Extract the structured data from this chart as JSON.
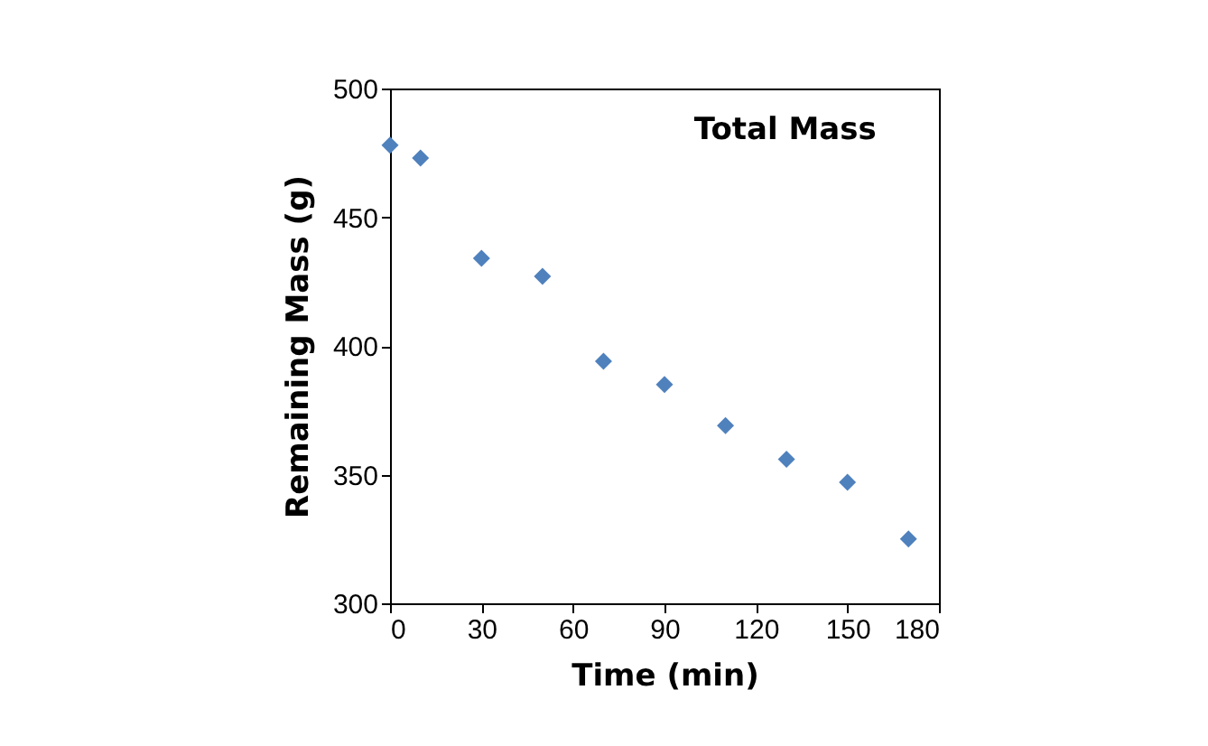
{
  "chart_data": {
    "type": "scatter",
    "title": "Total Mass",
    "xlabel": "Time (min)",
    "ylabel": "Remaining Mass (g)",
    "x": [
      0,
      10,
      30,
      50,
      70,
      90,
      110,
      130,
      150,
      170
    ],
    "series": [
      {
        "color": "#4f81bd",
        "values": [
          478,
          473,
          434,
          427,
          394,
          385,
          369,
          356,
          347,
          325
        ]
      }
    ],
    "xlim": [
      0,
      180
    ],
    "xticks": [
      0,
      30,
      60,
      90,
      120,
      150,
      180
    ],
    "ylim": [
      300,
      500
    ],
    "yticks": [
      300,
      350,
      400,
      450,
      500
    ],
    "marker": "diamond",
    "grid": false,
    "legend": false
  }
}
